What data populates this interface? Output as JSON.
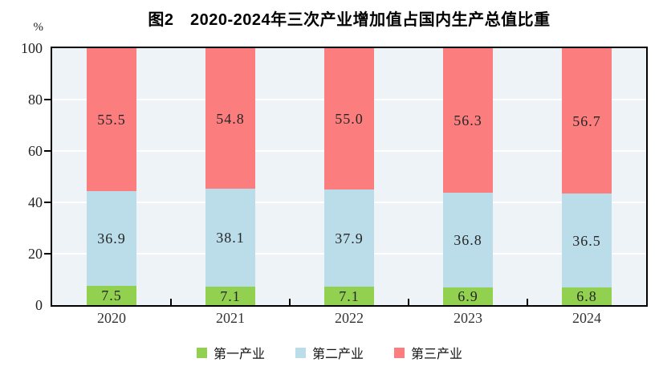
{
  "figure": {
    "title": "图2　2020-2024年三次产业增加值占国内生产总值比重",
    "y_axis_unit": "%"
  },
  "chart_data": {
    "type": "bar",
    "stacked": true,
    "title": "图2　2020-2024年三次产业增加值占国内生产总值比重",
    "categories": [
      "2020",
      "2021",
      "2022",
      "2023",
      "2024"
    ],
    "series": [
      {
        "id": "primary-industry",
        "name": "第一产业",
        "color": "#92d050",
        "values": [
          7.5,
          7.1,
          7.1,
          6.9,
          6.8
        ]
      },
      {
        "id": "secondary-industry",
        "name": "第二产业",
        "color": "#bbdce9",
        "values": [
          36.9,
          38.1,
          37.9,
          36.8,
          36.5
        ]
      },
      {
        "id": "tertiary-industry",
        "name": "第三产业",
        "color": "#fc7d7d",
        "values": [
          55.5,
          54.8,
          55.0,
          56.3,
          56.7
        ]
      }
    ],
    "xlabel": "",
    "ylabel": "%",
    "ylim": [
      0,
      100
    ],
    "yticks": [
      0,
      20,
      40,
      60,
      80,
      100
    ],
    "gridlines": [
      20,
      40,
      60,
      80
    ],
    "grid": true,
    "legend_position": "bottom",
    "plot_background": "#edf3f7",
    "gridline_color": "#ffffff",
    "frame_color": "#000000"
  }
}
